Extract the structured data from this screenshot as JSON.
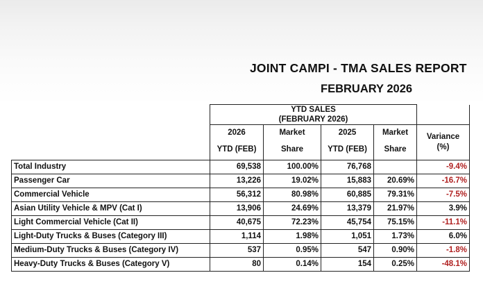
{
  "report": {
    "title": "JOINT CAMPI - TMA SALES REPORT",
    "subtitle": "FEBRUARY 2026"
  },
  "table": {
    "group_header": {
      "line1": "YTD SALES",
      "line2": "(FEBRUARY 2026)"
    },
    "columns": [
      {
        "line1": "2026",
        "line2": "YTD (FEB)"
      },
      {
        "line1": "Market",
        "line2": "Share"
      },
      {
        "line1": "2025",
        "line2": "YTD (FEB)"
      },
      {
        "line1": "Market",
        "line2": "Share"
      },
      {
        "line1": "Variance",
        "line2": "(%)"
      }
    ],
    "rows": [
      {
        "label": "Total Industry",
        "ytd_2026": "69,538",
        "share_2026": "100.00%",
        "ytd_2025": "76,768",
        "share_2025": "",
        "variance": "-9.4%"
      },
      {
        "label": "Passenger Car",
        "ytd_2026": "13,226",
        "share_2026": "19.02%",
        "ytd_2025": "15,883",
        "share_2025": "20.69%",
        "variance": "-16.7%"
      },
      {
        "label": "Commercial Vehicle",
        "ytd_2026": "56,312",
        "share_2026": "80.98%",
        "ytd_2025": "60,885",
        "share_2025": "79.31%",
        "variance": "-7.5%"
      },
      {
        "label": "Asian Utility Vehicle & MPV (Cat I)",
        "ytd_2026": "13,906",
        "share_2026": "24.69%",
        "ytd_2025": "13,379",
        "share_2025": "21.97%",
        "variance": "3.9%"
      },
      {
        "label": "Light Commercial Vehicle (Cat II)",
        "ytd_2026": "40,675",
        "share_2026": "72.23%",
        "ytd_2025": "45,754",
        "share_2025": "75.15%",
        "variance": "-11.1%"
      },
      {
        "label": "Light-Duty Trucks & Buses (Category III)",
        "ytd_2026": "1,114",
        "share_2026": "1.98%",
        "ytd_2025": "1,051",
        "share_2025": "1.73%",
        "variance": "6.0%"
      },
      {
        "label": "Medium-Duty Trucks & Buses (Category IV)",
        "ytd_2026": "537",
        "share_2026": "0.95%",
        "ytd_2025": "547",
        "share_2025": "0.90%",
        "variance": "-1.8%"
      },
      {
        "label": "Heavy-Duty Trucks & Buses (Category V)",
        "ytd_2026": "80",
        "share_2026": "0.14%",
        "ytd_2025": "154",
        "share_2025": "0.25%",
        "variance": "-48.1%"
      }
    ]
  },
  "colors": {
    "negative": "#b02020",
    "text": "#111111",
    "border": "#222222"
  }
}
